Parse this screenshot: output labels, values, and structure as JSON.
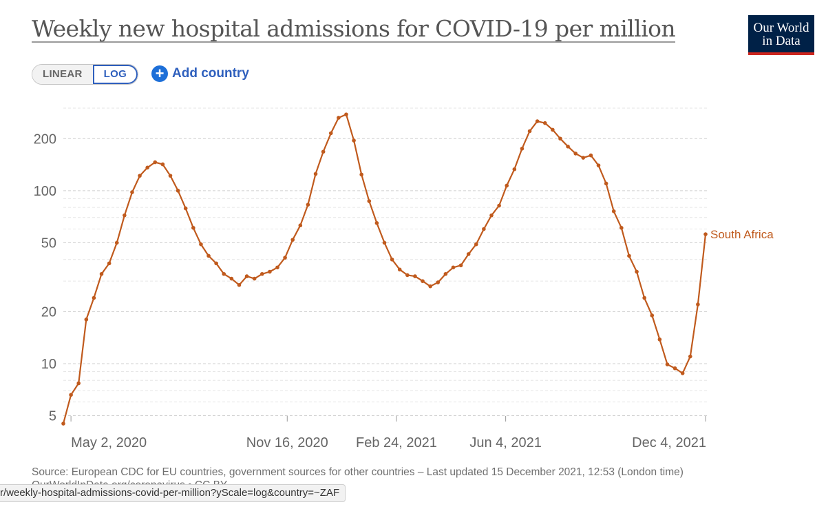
{
  "title": "Weekly new hospital admissions for COVID-19 per million",
  "logo": {
    "line1": "Our World",
    "line2": "in Data"
  },
  "controls": {
    "scale_options": [
      "LINEAR",
      "LOG"
    ],
    "active_scale": "LOG",
    "add_country_label": "Add country"
  },
  "colors": {
    "series": "#c05a1d",
    "accent": "#2e5fbd",
    "logo_bg": "#002147",
    "logo_stripe": "#ce261e"
  },
  "chart_data": {
    "type": "line",
    "yscale": "log",
    "ylim": [
      4.3,
      320
    ],
    "xlim": [
      "2020-04-25",
      "2021-12-04"
    ],
    "y_ticks": [
      5,
      10,
      20,
      50,
      100,
      200
    ],
    "y_minor_ticks": [
      6,
      7,
      8,
      9,
      30,
      40,
      60,
      70,
      80,
      90,
      300
    ],
    "x_ticks": [
      {
        "date": "2020-05-02",
        "label": "May 2, 2020"
      },
      {
        "date": "2020-11-16",
        "label": "Nov 16, 2020"
      },
      {
        "date": "2021-02-24",
        "label": "Feb 24, 2021"
      },
      {
        "date": "2021-06-04",
        "label": "Jun 4, 2021"
      },
      {
        "date": "2021-12-04",
        "label": "Dec 4, 2021"
      }
    ],
    "grid": true,
    "legend": "inline-end",
    "series": [
      {
        "name": "South Africa",
        "x": [
          "2020-04-25",
          "2020-05-02",
          "2020-05-09",
          "2020-05-16",
          "2020-05-23",
          "2020-05-30",
          "2020-06-06",
          "2020-06-13",
          "2020-06-20",
          "2020-06-27",
          "2020-07-04",
          "2020-07-11",
          "2020-07-18",
          "2020-07-25",
          "2020-08-01",
          "2020-08-08",
          "2020-08-15",
          "2020-08-22",
          "2020-08-29",
          "2020-09-05",
          "2020-09-12",
          "2020-09-19",
          "2020-09-26",
          "2020-10-03",
          "2020-10-10",
          "2020-10-17",
          "2020-10-24",
          "2020-10-31",
          "2020-11-07",
          "2020-11-14",
          "2020-11-21",
          "2020-11-28",
          "2020-12-05",
          "2020-12-12",
          "2020-12-19",
          "2020-12-26",
          "2021-01-02",
          "2021-01-09",
          "2021-01-16",
          "2021-01-23",
          "2021-01-30",
          "2021-02-06",
          "2021-02-13",
          "2021-02-20",
          "2021-02-27",
          "2021-03-06",
          "2021-03-13",
          "2021-03-20",
          "2021-03-27",
          "2021-04-03",
          "2021-04-10",
          "2021-04-17",
          "2021-04-24",
          "2021-05-01",
          "2021-05-08",
          "2021-05-15",
          "2021-05-22",
          "2021-05-29",
          "2021-06-05",
          "2021-06-12",
          "2021-06-19",
          "2021-06-26",
          "2021-07-03",
          "2021-07-10",
          "2021-07-17",
          "2021-07-24",
          "2021-07-31",
          "2021-08-07",
          "2021-08-14",
          "2021-08-21",
          "2021-08-28",
          "2021-09-04",
          "2021-09-11",
          "2021-09-18",
          "2021-09-25",
          "2021-10-02",
          "2021-10-09",
          "2021-10-16",
          "2021-10-23",
          "2021-10-30",
          "2021-11-06",
          "2021-11-13",
          "2021-11-20",
          "2021-11-27",
          "2021-12-04"
        ],
        "y": [
          4.5,
          6.6,
          7.7,
          18,
          24,
          33,
          38,
          50,
          72,
          98,
          122,
          136,
          146,
          142,
          122,
          100,
          79,
          61,
          49,
          42,
          38,
          33,
          31,
          28.5,
          32,
          31,
          33,
          34,
          36,
          41,
          52,
          63,
          83,
          125,
          168,
          215,
          264,
          276,
          195,
          124,
          87,
          65,
          50,
          40,
          35,
          32.5,
          32,
          30,
          28,
          29.5,
          33,
          36,
          37,
          43,
          49,
          60,
          72,
          82,
          107,
          133,
          175,
          221,
          252,
          246,
          225,
          200,
          180,
          164,
          155,
          160,
          140,
          110,
          76,
          61,
          42,
          34,
          24,
          19,
          13.8,
          9.9,
          9.4,
          8.8,
          11,
          22,
          56
        ]
      }
    ],
    "source": "Source: European CDC for EU countries, government sources for other countries – Last updated 15 December 2021, 12:53 (London time)",
    "source_line2": "OurWorldInData.org/coronavirus • CC BY"
  },
  "status_url": "r/weekly-hospital-admissions-covid-per-million?yScale=log&country=~ZAF"
}
